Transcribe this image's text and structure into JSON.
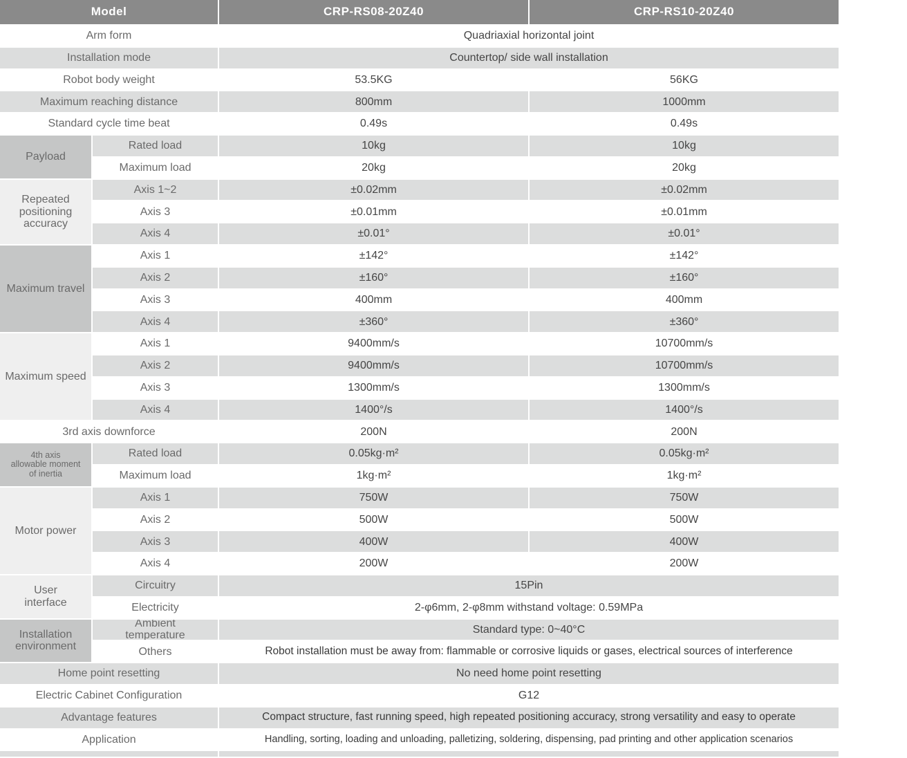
{
  "colors": {
    "header_bg": "#8a8a8a",
    "row_stripe_bg": "#dcdddd",
    "group_dark_bg": "#c5c6c6",
    "group_light_bg": "#efefef",
    "label_text": "#6a6a6a",
    "value_text": "#454545"
  },
  "header": {
    "model": "Model",
    "col1": "CRP-RS08-20Z40",
    "col2": "CRP-RS10-20Z40"
  },
  "rows": {
    "arm_form": {
      "label": "Arm form",
      "value": "Quadriaxial horizontal joint"
    },
    "installation_mode": {
      "label": "Installation mode",
      "value": "Countertop/ side wall installation"
    },
    "robot_body_weight": {
      "label": "Robot body weight",
      "v1": "53.5KG",
      "v2": "56KG"
    },
    "max_reach": {
      "label": "Maximum reaching distance",
      "v1": "800mm",
      "v2": "1000mm"
    },
    "cycle_time": {
      "label": "Standard cycle time beat",
      "v1": "0.49s",
      "v2": "0.49s"
    },
    "downforce": {
      "label": "3rd axis downforce",
      "v1": "200N",
      "v2": "200N"
    },
    "home_point": {
      "label": "Home point resetting",
      "value": "No need home point resetting"
    },
    "cabinet": {
      "label": "Electric Cabinet Configuration",
      "value": "G12"
    },
    "advantage": {
      "label": "Advantage features",
      "value": "Compact structure, fast running speed, high repeated positioning accuracy, strong versatility and easy to operate"
    },
    "application": {
      "label": "Application",
      "value": "Handling, sorting, loading and unloading, palletizing, soldering, dispensing, pad printing and other application scenarios"
    }
  },
  "groups": {
    "payload": {
      "label": "Payload",
      "rows": {
        "rated_load": {
          "label": "Rated load",
          "v1": "10kg",
          "v2": "10kg"
        },
        "max_load": {
          "label": "Maximum load",
          "v1": "20kg",
          "v2": "20kg"
        }
      }
    },
    "accuracy": {
      "label": "Repeated\npositioning\naccuracy",
      "rows": {
        "axis12": {
          "label": "Axis 1~2",
          "v1": "±0.02mm",
          "v2": "±0.02mm"
        },
        "axis3": {
          "label": "Axis 3",
          "v1": "±0.01mm",
          "v2": "±0.01mm"
        },
        "axis4": {
          "label": "Axis 4",
          "v1": "±0.01°",
          "v2": "±0.01°"
        }
      }
    },
    "travel": {
      "label": "Maximum travel",
      "rows": {
        "axis1": {
          "label": "Axis 1",
          "v1": "±142°",
          "v2": "±142°"
        },
        "axis2": {
          "label": "Axis 2",
          "v1": "±160°",
          "v2": "±160°"
        },
        "axis3": {
          "label": "Axis 3",
          "v1": "400mm",
          "v2": "400mm"
        },
        "axis4": {
          "label": "Axis 4",
          "v1": "±360°",
          "v2": "±360°"
        }
      }
    },
    "speed": {
      "label": "Maximum speed",
      "rows": {
        "axis1": {
          "label": "Axis 1",
          "v1": "9400mm/s",
          "v2": "10700mm/s"
        },
        "axis2": {
          "label": "Axis 2",
          "v1": "9400mm/s",
          "v2": "10700mm/s"
        },
        "axis3": {
          "label": "Axis 3",
          "v1": "1300mm/s",
          "v2": "1300mm/s"
        },
        "axis4": {
          "label": "Axis 4",
          "v1": "1400°/s",
          "v2": "1400°/s"
        }
      }
    },
    "inertia": {
      "label": "4th axis\nallowable moment\nof inertia",
      "rows": {
        "rated_load": {
          "label": "Rated load",
          "v1": "0.05kg·m²",
          "v2": "0.05kg·m²"
        },
        "max_load": {
          "label": "Maximum load",
          "v1": "1kg·m²",
          "v2": "1kg·m²"
        }
      }
    },
    "motor": {
      "label": "Motor power",
      "rows": {
        "axis1": {
          "label": "Axis 1",
          "v1": "750W",
          "v2": "750W"
        },
        "axis2": {
          "label": "Axis 2",
          "v1": "500W",
          "v2": "500W"
        },
        "axis3": {
          "label": "Axis 3",
          "v1": "400W",
          "v2": "400W"
        },
        "axis4": {
          "label": "Axis 4",
          "v1": "200W",
          "v2": "200W"
        }
      }
    },
    "interface": {
      "label": "User\ninterface",
      "rows": {
        "circuitry": {
          "label": "Circuitry",
          "value": "15Pin"
        },
        "electricity": {
          "label": "Electricity",
          "value": "2-φ6mm, 2-φ8mm withstand voltage: 0.59MPa"
        }
      }
    },
    "environment": {
      "label": "Installation\nenvironment",
      "rows": {
        "ambient": {
          "label": "Ambient\ntemperature",
          "value": "Standard type:  0~40°C"
        },
        "others": {
          "label": "Others",
          "value": "Robot installation must be away from: flammable or corrosive liquids or gases, electrical sources of interference"
        }
      }
    }
  }
}
